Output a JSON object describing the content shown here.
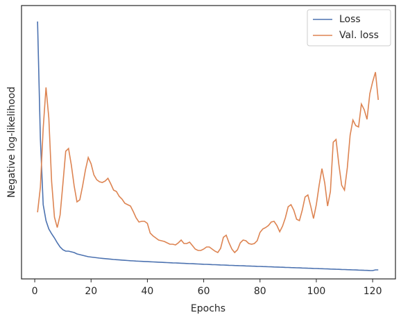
{
  "chart_data": {
    "type": "line",
    "xlabel": "Epochs",
    "ylabel": "Negative log-likelihood",
    "xlim": [
      -4.7,
      128.1
    ],
    "xticks": [
      0,
      20,
      40,
      60,
      80,
      100,
      120
    ],
    "ylim": [
      0,
      394
    ],
    "legend": "upper right",
    "x": [
      1,
      2,
      3,
      4,
      5,
      6,
      7,
      8,
      9,
      10,
      11,
      12,
      13,
      14,
      15,
      16,
      17,
      18,
      19,
      20,
      21,
      22,
      23,
      24,
      25,
      26,
      27,
      28,
      29,
      30,
      31,
      32,
      33,
      34,
      35,
      36,
      37,
      38,
      39,
      40,
      41,
      42,
      43,
      44,
      45,
      46,
      47,
      48,
      49,
      50,
      51,
      52,
      53,
      54,
      55,
      56,
      57,
      58,
      59,
      60,
      61,
      62,
      63,
      64,
      65,
      66,
      67,
      68,
      69,
      70,
      71,
      72,
      73,
      74,
      75,
      76,
      77,
      78,
      79,
      80,
      81,
      82,
      83,
      84,
      85,
      86,
      87,
      88,
      89,
      90,
      91,
      92,
      93,
      94,
      95,
      96,
      97,
      98,
      99,
      100,
      101,
      102,
      103,
      104,
      105,
      106,
      107,
      108,
      109,
      110,
      111,
      112,
      113,
      114,
      115,
      116,
      117,
      118,
      119,
      120,
      121,
      122
    ],
    "series": [
      {
        "name": "Loss",
        "color": "#4c72b0",
        "values": [
          371,
          202,
          107,
          84,
          72,
          65,
          59,
          52,
          46,
          42,
          40,
          40,
          39,
          38,
          36,
          35,
          34,
          33,
          32,
          31.5,
          31,
          30.5,
          30,
          29.6,
          29.2,
          28.8,
          28.4,
          28,
          27.7,
          27.4,
          27.1,
          26.8,
          26.5,
          26.2,
          26,
          25.7,
          25.5,
          25.3,
          25.1,
          24.9,
          24.7,
          24.5,
          24.3,
          24.1,
          23.9,
          23.7,
          23.5,
          23.3,
          23.1,
          23,
          22.8,
          22.6,
          22.4,
          22.2,
          22,
          21.9,
          21.7,
          21.5,
          21.3,
          21.1,
          21,
          20.8,
          20.6,
          20.5,
          20.3,
          20.1,
          20,
          19.8,
          19.6,
          19.5,
          19.3,
          19.2,
          19,
          18.9,
          18.7,
          18.6,
          18.4,
          18.3,
          18.1,
          18,
          17.8,
          17.7,
          17.5,
          17.4,
          17.2,
          17.1,
          16.9,
          16.8,
          16.6,
          16.5,
          16.3,
          16.2,
          16,
          15.9,
          15.7,
          15.6,
          15.4,
          15.3,
          15.1,
          15,
          14.8,
          14.7,
          14.5,
          14.4,
          14.2,
          14.1,
          13.9,
          13.8,
          13.6,
          13.5,
          13.3,
          13.2,
          13,
          12.9,
          12.7,
          12.6,
          12.4,
          12.3,
          12.1,
          12,
          13,
          13
        ]
      },
      {
        "name": "Val. loss",
        "color": "#dd8452",
        "values": [
          96,
          132,
          217,
          276,
          232,
          140,
          89,
          74,
          92,
          137,
          184,
          188,
          164,
          134,
          111,
          114,
          134,
          157,
          175,
          166,
          150,
          143,
          140,
          139,
          141,
          145,
          137,
          128,
          126,
          119,
          115,
          109,
          107,
          105,
          97,
          88,
          82,
          83,
          83,
          80,
          66,
          62,
          59,
          56,
          55,
          54,
          52,
          50,
          50,
          49,
          52,
          56,
          51,
          51,
          53,
          48,
          43,
          41,
          41,
          43,
          46,
          46,
          43,
          40,
          38,
          44,
          60,
          63,
          52,
          43,
          38,
          42,
          52,
          56,
          55,
          51,
          50,
          51,
          55,
          67,
          72,
          74,
          77,
          82,
          83,
          77,
          68,
          76,
          88,
          104,
          107,
          99,
          86,
          84,
          99,
          118,
          121,
          105,
          87,
          107,
          135,
          159,
          138,
          105,
          126,
          197,
          201,
          165,
          135,
          128,
          160,
          207,
          229,
          221,
          219,
          252,
          244,
          230,
          267,
          284,
          298,
          258
        ]
      }
    ]
  }
}
